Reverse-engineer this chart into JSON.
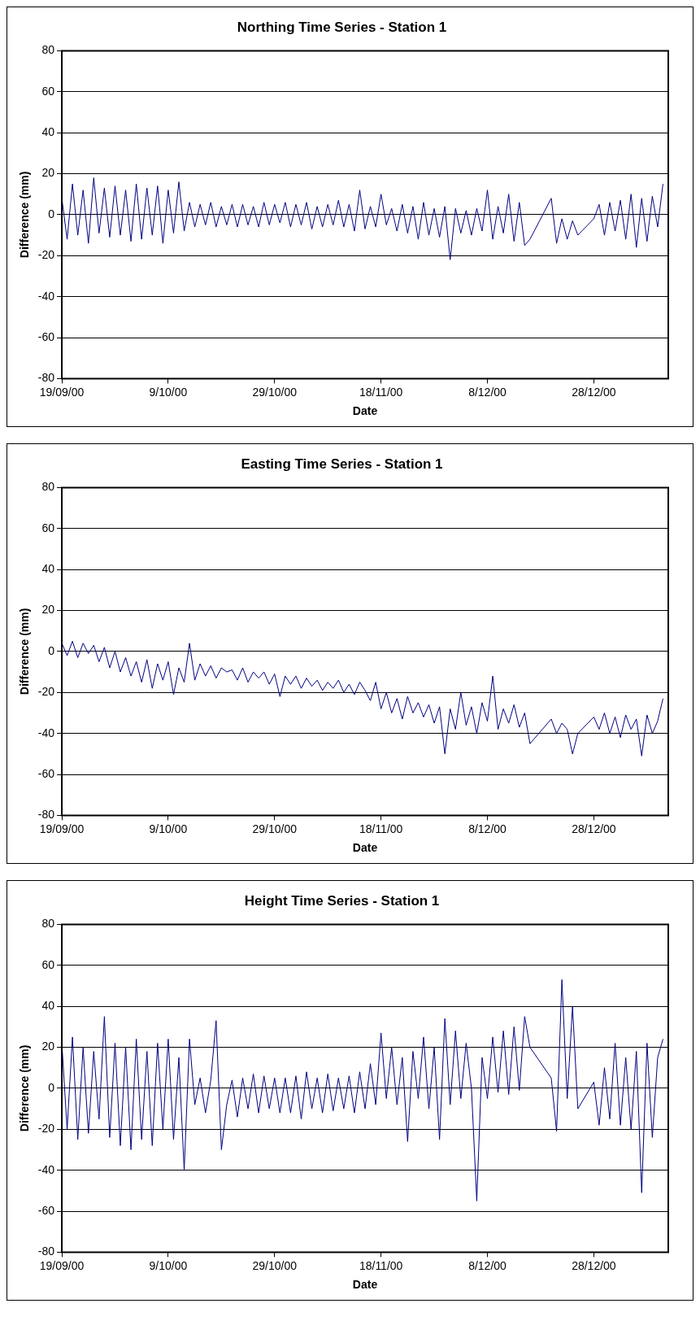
{
  "chart_data": [
    {
      "type": "line",
      "title": "Northing Time Series - Station 1",
      "xlabel": "Date",
      "ylabel": "Difference (mm)",
      "xlim": [
        "2000-09-19",
        "2001-01-11"
      ],
      "xticks": [
        {
          "value": "2000-09-19",
          "label": "19/09/00"
        },
        {
          "value": "2000-10-09",
          "label": "9/10/00"
        },
        {
          "value": "2000-10-29",
          "label": "29/10/00"
        },
        {
          "value": "2000-11-18",
          "label": "18/11/00"
        },
        {
          "value": "2000-12-08",
          "label": "8/12/00"
        },
        {
          "value": "2000-12-28",
          "label": "28/12/00"
        }
      ],
      "ylim": [
        -80,
        80
      ],
      "yticks": [
        -80,
        -60,
        -40,
        -20,
        0,
        20,
        40,
        60,
        80
      ],
      "grid": "y",
      "legend": false,
      "x": [
        "2000-09-19",
        "2000-09-20",
        "2000-09-21",
        "2000-09-22",
        "2000-09-23",
        "2000-09-24",
        "2000-09-25",
        "2000-09-26",
        "2000-09-27",
        "2000-09-28",
        "2000-09-29",
        "2000-09-30",
        "2000-10-01",
        "2000-10-02",
        "2000-10-03",
        "2000-10-04",
        "2000-10-05",
        "2000-10-06",
        "2000-10-07",
        "2000-10-08",
        "2000-10-09",
        "2000-10-10",
        "2000-10-11",
        "2000-10-12",
        "2000-10-13",
        "2000-10-14",
        "2000-10-15",
        "2000-10-16",
        "2000-10-17",
        "2000-10-18",
        "2000-10-19",
        "2000-10-20",
        "2000-10-21",
        "2000-10-22",
        "2000-10-23",
        "2000-10-24",
        "2000-10-25",
        "2000-10-26",
        "2000-10-27",
        "2000-10-28",
        "2000-10-29",
        "2000-10-30",
        "2000-10-31",
        "2000-11-01",
        "2000-11-02",
        "2000-11-03",
        "2000-11-04",
        "2000-11-05",
        "2000-11-06",
        "2000-11-07",
        "2000-11-08",
        "2000-11-09",
        "2000-11-10",
        "2000-11-11",
        "2000-11-12",
        "2000-11-13",
        "2000-11-14",
        "2000-11-15",
        "2000-11-16",
        "2000-11-17",
        "2000-11-18",
        "2000-11-19",
        "2000-11-20",
        "2000-11-21",
        "2000-11-22",
        "2000-11-23",
        "2000-11-24",
        "2000-11-25",
        "2000-11-26",
        "2000-11-27",
        "2000-11-28",
        "2000-11-29",
        "2000-11-30",
        "2000-12-01",
        "2000-12-02",
        "2000-12-03",
        "2000-12-04",
        "2000-12-05",
        "2000-12-06",
        "2000-12-07",
        "2000-12-08",
        "2000-12-09",
        "2000-12-10",
        "2000-12-11",
        "2000-12-12",
        "2000-12-13",
        "2000-12-14",
        "2000-12-15",
        "2000-12-16",
        "2000-12-20",
        "2000-12-21",
        "2000-12-22",
        "2000-12-23",
        "2000-12-24",
        "2000-12-25",
        "2000-12-28",
        "2000-12-29",
        "2000-12-30",
        "2000-12-31",
        "2001-01-01",
        "2001-01-02",
        "2001-01-03",
        "2001-01-04",
        "2001-01-05",
        "2001-01-06",
        "2001-01-07",
        "2001-01-08",
        "2001-01-09",
        "2001-01-10"
      ],
      "series": [
        {
          "color": "#000080",
          "values": [
            8,
            -12,
            15,
            -10,
            12,
            -14,
            18,
            -9,
            13,
            -11,
            14,
            -10,
            12,
            -13,
            15,
            -12,
            13,
            -10,
            14,
            -14,
            12,
            -9,
            16,
            -8,
            6,
            -6,
            5,
            -5,
            6,
            -6,
            4,
            -5,
            5,
            -6,
            5,
            -5,
            4,
            -6,
            6,
            -5,
            5,
            -4,
            6,
            -6,
            5,
            -5,
            6,
            -7,
            4,
            -6,
            5,
            -5,
            7,
            -6,
            5,
            -8,
            12,
            -7,
            4,
            -6,
            10,
            -5,
            3,
            -8,
            5,
            -9,
            4,
            -12,
            6,
            -10,
            3,
            -11,
            4,
            -22,
            3,
            -9,
            2,
            -10,
            3,
            -8,
            12,
            -12,
            4,
            -9,
            10,
            -13,
            6,
            -15,
            -12,
            8,
            -14,
            -2,
            -12,
            -3,
            -10,
            -2,
            5,
            -10,
            6,
            -8,
            7,
            -12,
            10,
            -16,
            8,
            -13,
            9,
            -6,
            15
          ]
        }
      ]
    },
    {
      "type": "line",
      "title": "Easting Time Series - Station 1",
      "xlabel": "Date",
      "ylabel": "Difference (mm)",
      "xlim": [
        "2000-09-19",
        "2001-01-11"
      ],
      "xticks": [
        {
          "value": "2000-09-19",
          "label": "19/09/00"
        },
        {
          "value": "2000-10-09",
          "label": "9/10/00"
        },
        {
          "value": "2000-10-29",
          "label": "29/10/00"
        },
        {
          "value": "2000-11-18",
          "label": "18/11/00"
        },
        {
          "value": "2000-12-08",
          "label": "8/12/00"
        },
        {
          "value": "2000-12-28",
          "label": "28/12/00"
        }
      ],
      "ylim": [
        -80,
        80
      ],
      "yticks": [
        -80,
        -60,
        -40,
        -20,
        0,
        20,
        40,
        60,
        80
      ],
      "grid": "y",
      "legend": false,
      "x": [
        "2000-09-19",
        "2000-09-20",
        "2000-09-21",
        "2000-09-22",
        "2000-09-23",
        "2000-09-24",
        "2000-09-25",
        "2000-09-26",
        "2000-09-27",
        "2000-09-28",
        "2000-09-29",
        "2000-09-30",
        "2000-10-01",
        "2000-10-02",
        "2000-10-03",
        "2000-10-04",
        "2000-10-05",
        "2000-10-06",
        "2000-10-07",
        "2000-10-08",
        "2000-10-09",
        "2000-10-10",
        "2000-10-11",
        "2000-10-12",
        "2000-10-13",
        "2000-10-14",
        "2000-10-15",
        "2000-10-16",
        "2000-10-17",
        "2000-10-18",
        "2000-10-19",
        "2000-10-20",
        "2000-10-21",
        "2000-10-22",
        "2000-10-23",
        "2000-10-24",
        "2000-10-25",
        "2000-10-26",
        "2000-10-27",
        "2000-10-28",
        "2000-10-29",
        "2000-10-30",
        "2000-10-31",
        "2000-11-01",
        "2000-11-02",
        "2000-11-03",
        "2000-11-04",
        "2000-11-05",
        "2000-11-06",
        "2000-11-07",
        "2000-11-08",
        "2000-11-09",
        "2000-11-10",
        "2000-11-11",
        "2000-11-12",
        "2000-11-13",
        "2000-11-14",
        "2000-11-15",
        "2000-11-16",
        "2000-11-17",
        "2000-11-18",
        "2000-11-19",
        "2000-11-20",
        "2000-11-21",
        "2000-11-22",
        "2000-11-23",
        "2000-11-24",
        "2000-11-25",
        "2000-11-26",
        "2000-11-27",
        "2000-11-28",
        "2000-11-29",
        "2000-11-30",
        "2000-12-01",
        "2000-12-02",
        "2000-12-03",
        "2000-12-04",
        "2000-12-05",
        "2000-12-06",
        "2000-12-07",
        "2000-12-08",
        "2000-12-09",
        "2000-12-10",
        "2000-12-11",
        "2000-12-12",
        "2000-12-13",
        "2000-12-14",
        "2000-12-15",
        "2000-12-16",
        "2000-12-20",
        "2000-12-21",
        "2000-12-22",
        "2000-12-23",
        "2000-12-24",
        "2000-12-25",
        "2000-12-28",
        "2000-12-29",
        "2000-12-30",
        "2000-12-31",
        "2001-01-01",
        "2001-01-02",
        "2001-01-03",
        "2001-01-04",
        "2001-01-05",
        "2001-01-06",
        "2001-01-07",
        "2001-01-08",
        "2001-01-09",
        "2001-01-10"
      ],
      "series": [
        {
          "color": "#000080",
          "values": [
            4,
            -2,
            5,
            -3,
            4,
            -1,
            3,
            -5,
            2,
            -8,
            0,
            -10,
            -3,
            -12,
            -5,
            -15,
            -4,
            -18,
            -6,
            -14,
            -5,
            -21,
            -8,
            -15,
            4,
            -14,
            -6,
            -12,
            -7,
            -13,
            -8,
            -10,
            -9,
            -14,
            -8,
            -15,
            -10,
            -13,
            -10,
            -16,
            -11,
            -22,
            -12,
            -16,
            -12,
            -18,
            -13,
            -17,
            -14,
            -19,
            -15,
            -18,
            -14,
            -20,
            -16,
            -21,
            -15,
            -19,
            -24,
            -15,
            -28,
            -20,
            -30,
            -23,
            -33,
            -22,
            -30,
            -25,
            -32,
            -26,
            -35,
            -27,
            -50,
            -28,
            -38,
            -20,
            -36,
            -27,
            -40,
            -25,
            -34,
            -12,
            -38,
            -28,
            -35,
            -26,
            -37,
            -30,
            -45,
            -33,
            -40,
            -35,
            -38,
            -50,
            -40,
            -32,
            -38,
            -30,
            -40,
            -32,
            -42,
            -31,
            -38,
            -33,
            -51,
            -31,
            -40,
            -34,
            -23
          ]
        }
      ]
    },
    {
      "type": "line",
      "title": "Height Time Series - Station 1",
      "xlabel": "Date",
      "ylabel": "Difference (mm)",
      "xlim": [
        "2000-09-19",
        "2001-01-11"
      ],
      "xticks": [
        {
          "value": "2000-09-19",
          "label": "19/09/00"
        },
        {
          "value": "2000-10-09",
          "label": "9/10/00"
        },
        {
          "value": "2000-10-29",
          "label": "29/10/00"
        },
        {
          "value": "2000-11-18",
          "label": "18/11/00"
        },
        {
          "value": "2000-12-08",
          "label": "8/12/00"
        },
        {
          "value": "2000-12-28",
          "label": "28/12/00"
        }
      ],
      "ylim": [
        -80,
        80
      ],
      "yticks": [
        -80,
        -60,
        -40,
        -20,
        0,
        20,
        40,
        60,
        80
      ],
      "grid": "y",
      "legend": false,
      "x": [
        "2000-09-19",
        "2000-09-20",
        "2000-09-21",
        "2000-09-22",
        "2000-09-23",
        "2000-09-24",
        "2000-09-25",
        "2000-09-26",
        "2000-09-27",
        "2000-09-28",
        "2000-09-29",
        "2000-09-30",
        "2000-10-01",
        "2000-10-02",
        "2000-10-03",
        "2000-10-04",
        "2000-10-05",
        "2000-10-06",
        "2000-10-07",
        "2000-10-08",
        "2000-10-09",
        "2000-10-10",
        "2000-10-11",
        "2000-10-12",
        "2000-10-13",
        "2000-10-14",
        "2000-10-15",
        "2000-10-16",
        "2000-10-17",
        "2000-10-18",
        "2000-10-19",
        "2000-10-20",
        "2000-10-21",
        "2000-10-22",
        "2000-10-23",
        "2000-10-24",
        "2000-10-25",
        "2000-10-26",
        "2000-10-27",
        "2000-10-28",
        "2000-10-29",
        "2000-10-30",
        "2000-10-31",
        "2000-11-01",
        "2000-11-02",
        "2000-11-03",
        "2000-11-04",
        "2000-11-05",
        "2000-11-06",
        "2000-11-07",
        "2000-11-08",
        "2000-11-09",
        "2000-11-10",
        "2000-11-11",
        "2000-11-12",
        "2000-11-13",
        "2000-11-14",
        "2000-11-15",
        "2000-11-16",
        "2000-11-17",
        "2000-11-18",
        "2000-11-19",
        "2000-11-20",
        "2000-11-21",
        "2000-11-22",
        "2000-11-23",
        "2000-11-24",
        "2000-11-25",
        "2000-11-26",
        "2000-11-27",
        "2000-11-28",
        "2000-11-29",
        "2000-11-30",
        "2000-12-01",
        "2000-12-02",
        "2000-12-03",
        "2000-12-04",
        "2000-12-05",
        "2000-12-06",
        "2000-12-07",
        "2000-12-08",
        "2000-12-09",
        "2000-12-10",
        "2000-12-11",
        "2000-12-12",
        "2000-12-13",
        "2000-12-14",
        "2000-12-15",
        "2000-12-16",
        "2000-12-20",
        "2000-12-21",
        "2000-12-22",
        "2000-12-23",
        "2000-12-24",
        "2000-12-25",
        "2000-12-28",
        "2000-12-29",
        "2000-12-30",
        "2000-12-31",
        "2001-01-01",
        "2001-01-02",
        "2001-01-03",
        "2001-01-04",
        "2001-01-05",
        "2001-01-06",
        "2001-01-07",
        "2001-01-08",
        "2001-01-09",
        "2001-01-10"
      ],
      "series": [
        {
          "color": "#000080",
          "values": [
            22,
            -20,
            25,
            -25,
            20,
            -22,
            18,
            -15,
            35,
            -24,
            22,
            -28,
            20,
            -30,
            24,
            -25,
            18,
            -28,
            22,
            -20,
            24,
            -25,
            15,
            -40,
            24,
            -8,
            5,
            -12,
            4,
            33,
            -30,
            -8,
            4,
            -14,
            5,
            -10,
            7,
            -12,
            6,
            -10,
            5,
            -12,
            5,
            -12,
            6,
            -15,
            8,
            -10,
            5,
            -12,
            7,
            -11,
            5,
            -10,
            6,
            -12,
            8,
            -10,
            12,
            -8,
            27,
            -5,
            20,
            -8,
            15,
            -26,
            18,
            -5,
            25,
            -10,
            20,
            -25,
            34,
            -8,
            28,
            -5,
            22,
            0,
            -55,
            15,
            -5,
            25,
            -2,
            28,
            -3,
            30,
            -1,
            35,
            20,
            5,
            -21,
            53,
            -5,
            40,
            -10,
            3,
            -18,
            10,
            -15,
            22,
            -18,
            15,
            -20,
            18,
            -51,
            22,
            -24,
            15,
            24
          ]
        }
      ]
    }
  ]
}
